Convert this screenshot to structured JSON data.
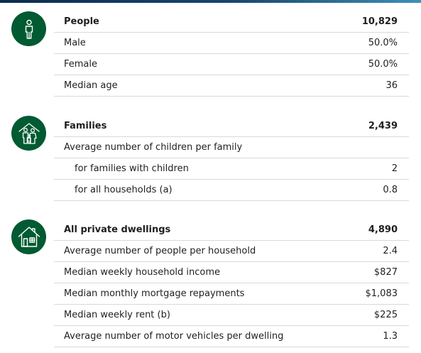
{
  "sections": [
    {
      "id": "people",
      "icon": "person-icon",
      "rows": [
        {
          "label": "People",
          "value": "10,829",
          "header": true
        },
        {
          "label": "Male",
          "value": "50.0%"
        },
        {
          "label": "Female",
          "value": "50.0%"
        },
        {
          "label": "Median age",
          "value": "36"
        }
      ]
    },
    {
      "id": "families",
      "icon": "family-icon",
      "rows": [
        {
          "label": "Families",
          "value": "2,439",
          "header": true
        },
        {
          "label": "Average number of children per family",
          "value": ""
        },
        {
          "label": "for families with children",
          "value": "2",
          "indent": true
        },
        {
          "label": "for all households (a)",
          "value": "0.8",
          "indent": true
        }
      ]
    },
    {
      "id": "dwellings",
      "icon": "house-icon",
      "rows": [
        {
          "label": "All private dwellings",
          "value": "4,890",
          "header": true
        },
        {
          "label": "Average number of people per household",
          "value": "2.4"
        },
        {
          "label": "Median weekly household income",
          "value": "$827"
        },
        {
          "label": "Median monthly mortgage repayments",
          "value": "$1,083"
        },
        {
          "label": "Median weekly rent (b)",
          "value": "$225"
        },
        {
          "label": "Average number of motor vehicles per dwelling",
          "value": "1.3"
        }
      ]
    }
  ],
  "colors": {
    "icon_bg": "#005a32",
    "divider": "#d9d9d9",
    "text": "#1f1f1f"
  }
}
